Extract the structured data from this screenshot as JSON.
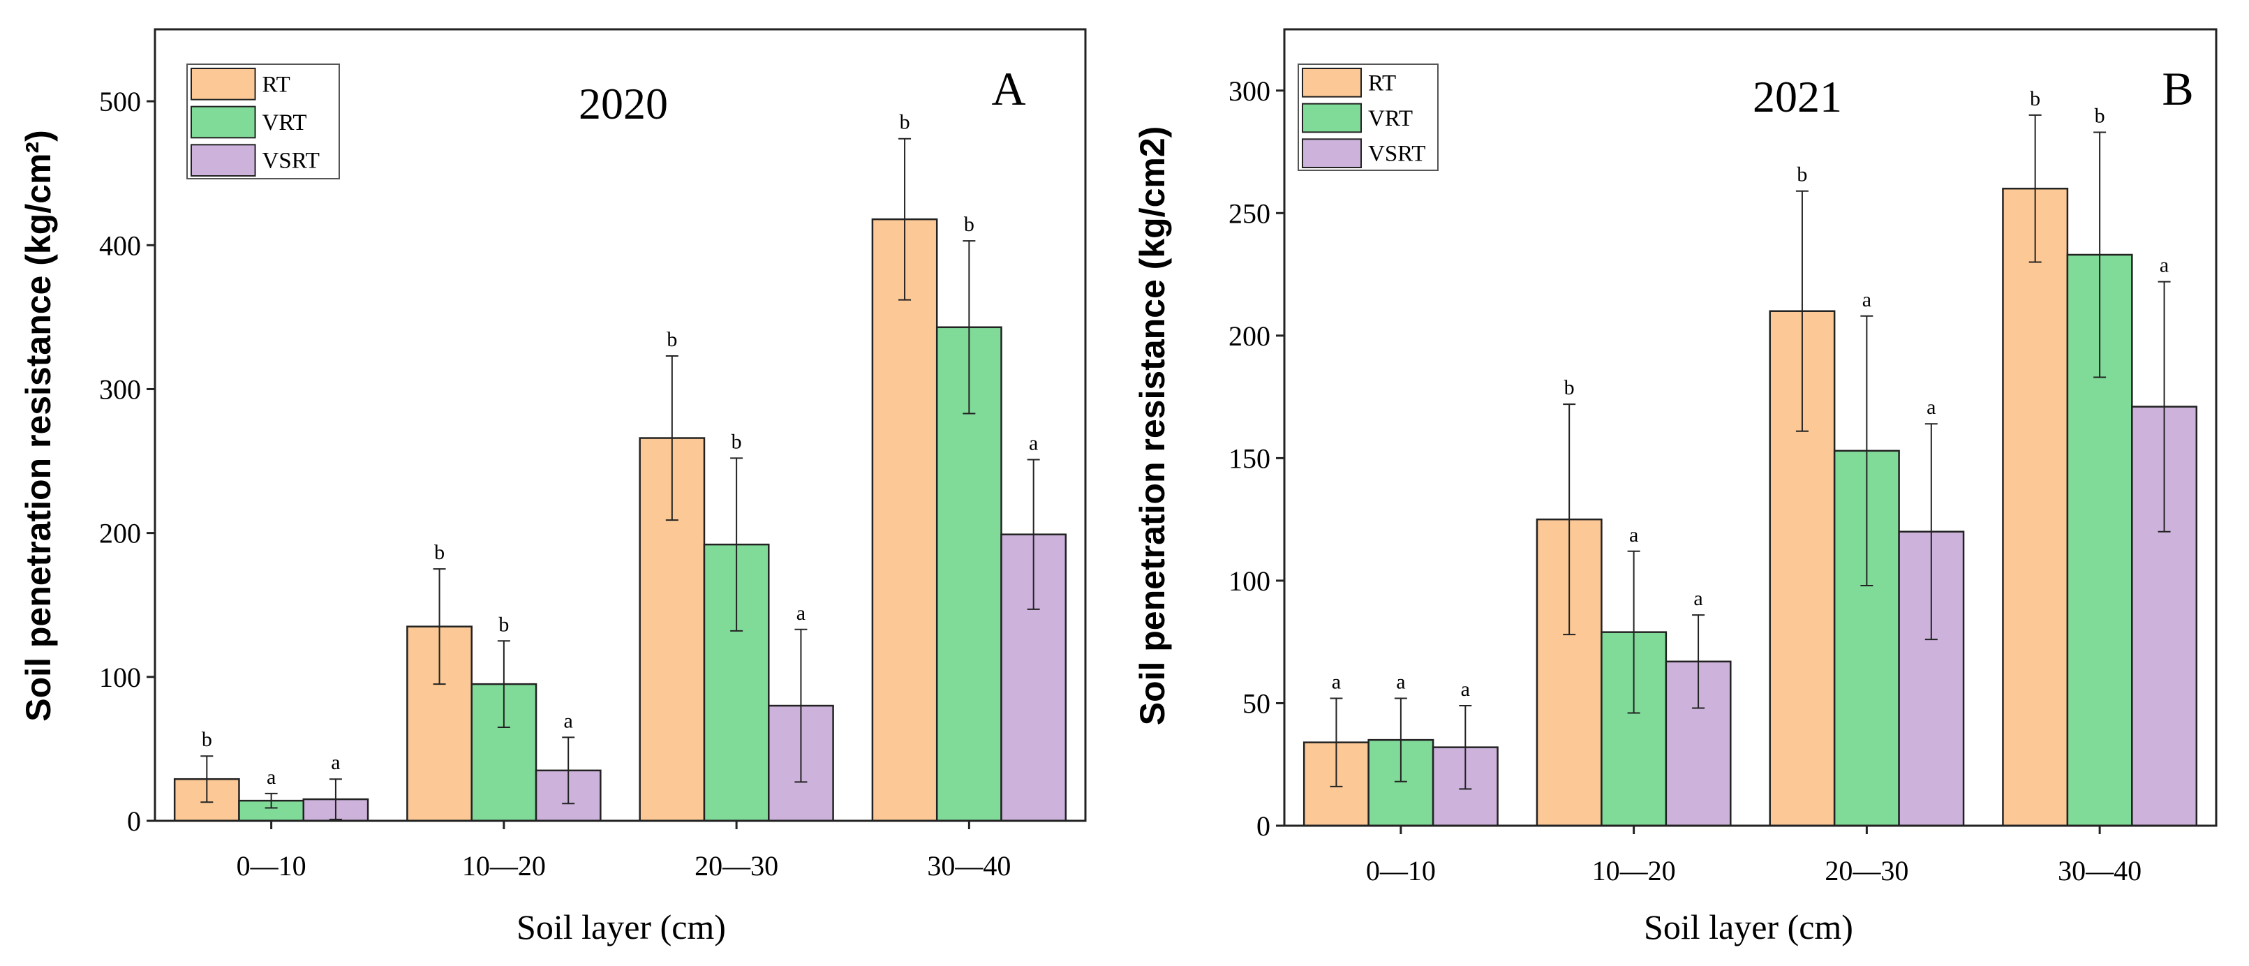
{
  "chart_data": [
    {
      "type": "bar",
      "panel": "A",
      "title": "2020",
      "xlabel": "Soil layer (cm)",
      "ylabel": "Soil penetration resistance (kg/cm²)",
      "ylim": [
        0,
        550
      ],
      "yticks": [
        0,
        100,
        200,
        300,
        400,
        500
      ],
      "categories": [
        "0—10",
        "10—20",
        "20—30",
        "30—40"
      ],
      "legend_position": "top-left",
      "series": [
        {
          "name": "RT",
          "color": "#FCC996",
          "values": [
            29,
            135,
            266,
            418
          ],
          "errors": [
            16,
            40,
            57,
            56
          ],
          "letters": [
            "b",
            "b",
            "b",
            "b"
          ]
        },
        {
          "name": "VRT",
          "color": "#80DB99",
          "values": [
            14,
            95,
            192,
            343
          ],
          "errors": [
            5,
            30,
            60,
            60
          ],
          "letters": [
            "a",
            "b",
            "b",
            "b"
          ]
        },
        {
          "name": "VSRT",
          "color": "#CDB3DC",
          "values": [
            15,
            35,
            80,
            199
          ],
          "errors": [
            14,
            23,
            53,
            52
          ],
          "letters": [
            "a",
            "a",
            "a",
            "a"
          ]
        }
      ]
    },
    {
      "type": "bar",
      "panel": "B",
      "title": "2021",
      "xlabel": "Soil layer (cm)",
      "ylabel": "Soil penetration resistance (kg/cm2)",
      "ylim": [
        0,
        325
      ],
      "yticks": [
        0,
        50,
        100,
        150,
        200,
        250,
        300
      ],
      "categories": [
        "0—10",
        "10—20",
        "20—30",
        "30—40"
      ],
      "legend_position": "top-left",
      "series": [
        {
          "name": "RT",
          "color": "#FCC996",
          "values": [
            34,
            125,
            210,
            260
          ],
          "errors": [
            18,
            47,
            49,
            30
          ],
          "letters": [
            "a",
            "b",
            "b",
            "b"
          ]
        },
        {
          "name": "VRT",
          "color": "#80DB99",
          "values": [
            35,
            79,
            153,
            233
          ],
          "errors": [
            17,
            33,
            55,
            50
          ],
          "letters": [
            "a",
            "a",
            "a",
            "b"
          ]
        },
        {
          "name": "VSRT",
          "color": "#CDB3DC",
          "values": [
            32,
            67,
            120,
            171
          ],
          "errors": [
            17,
            19,
            44,
            51
          ],
          "letters": [
            "a",
            "a",
            "a",
            "a"
          ]
        }
      ]
    }
  ]
}
